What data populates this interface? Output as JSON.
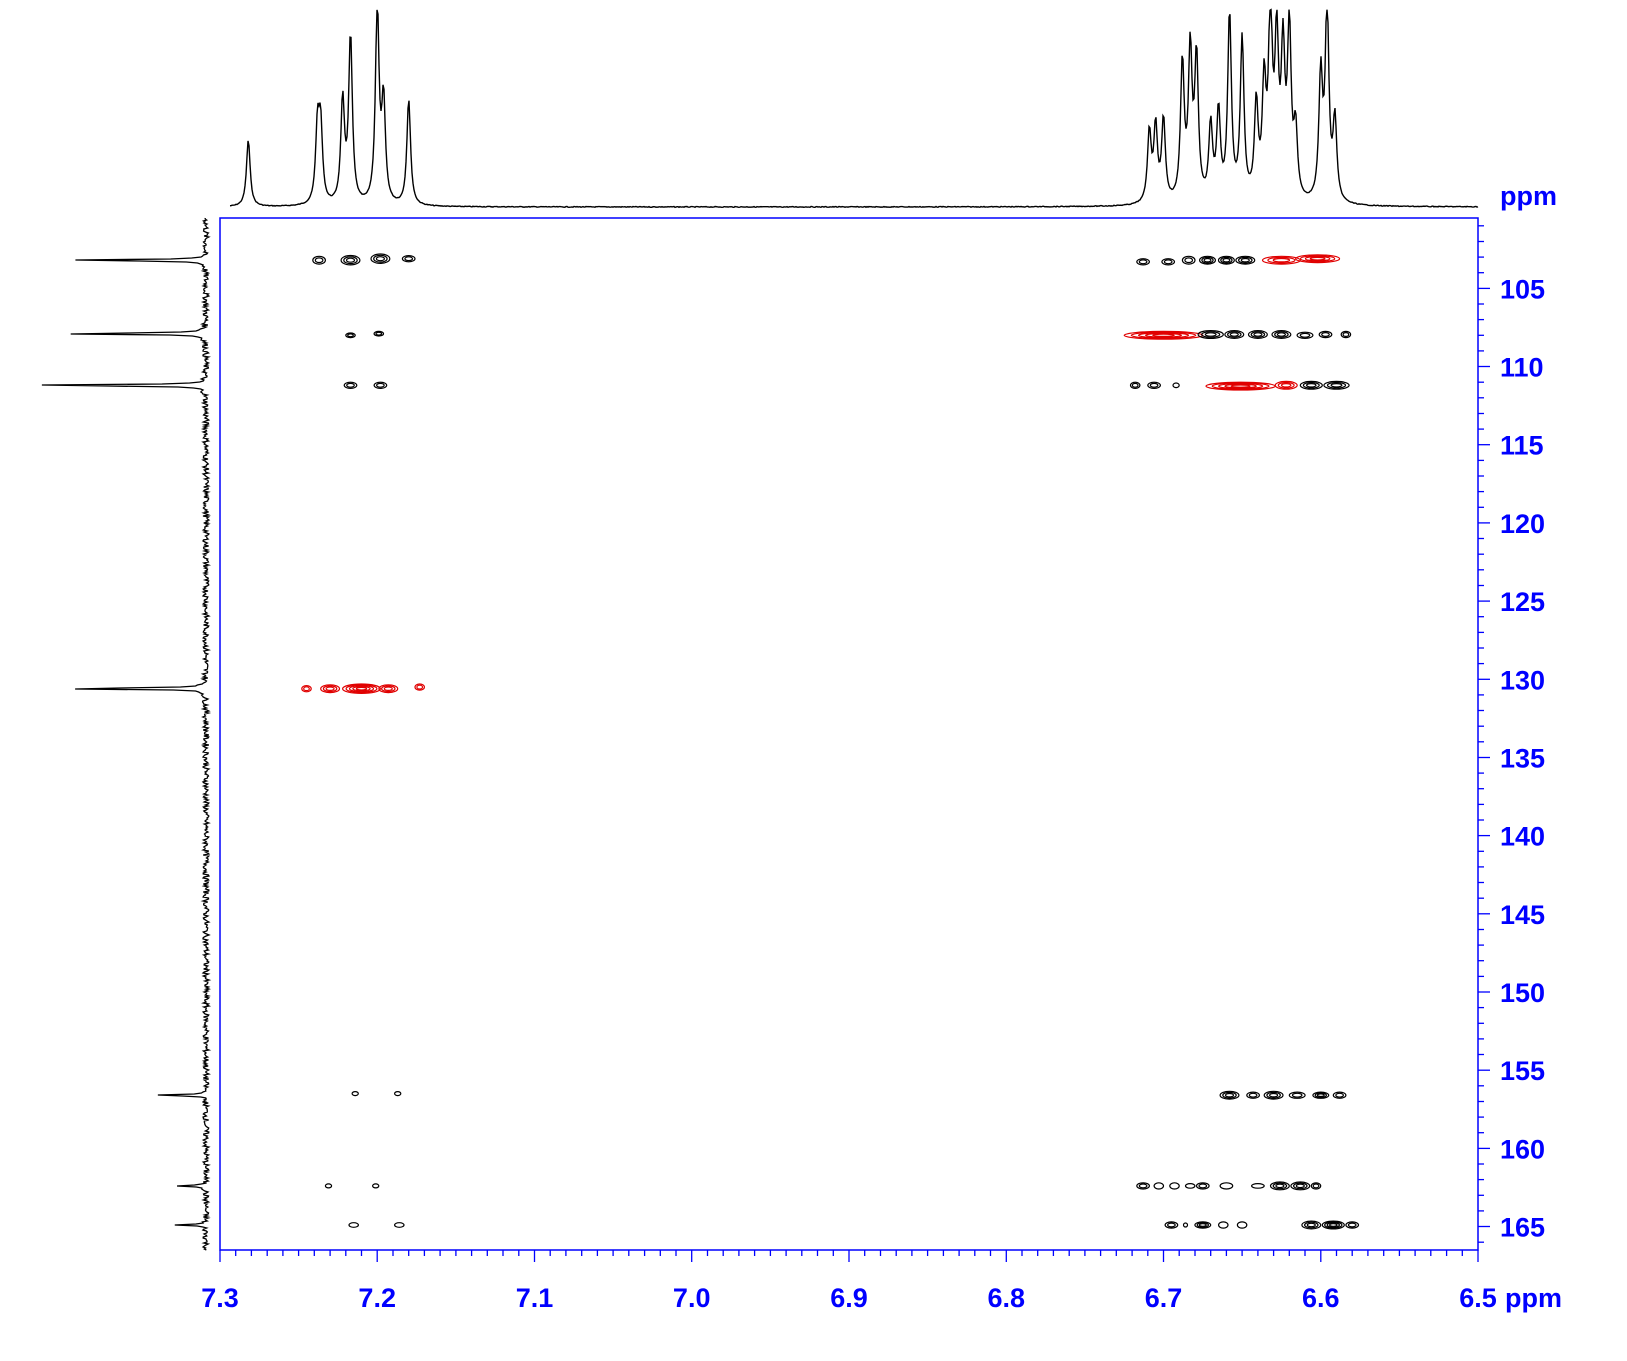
{
  "chart_data": {
    "type": "heatmap",
    "subtype": "2D NMR contour plot (HSQC/HMBC overlay) with 1D projections",
    "x_axis": {
      "unit_label": "ppm",
      "range": [
        7.3,
        6.5
      ],
      "reversed": true,
      "ticks": [
        7.3,
        7.2,
        7.1,
        7.0,
        6.9,
        6.8,
        6.7,
        6.6,
        6.5
      ],
      "tick_labels": [
        "7.3",
        "7.2",
        "7.1",
        "7.0",
        "6.9",
        "6.8",
        "6.7",
        "6.6",
        "6.5"
      ]
    },
    "y_axis": {
      "unit_label": "ppm",
      "range": [
        100.5,
        166.5
      ],
      "reversed": true,
      "position": "right",
      "ticks": [
        105,
        110,
        115,
        120,
        125,
        130,
        135,
        140,
        145,
        150,
        155,
        160,
        165
      ],
      "tick_labels": [
        "105",
        "110",
        "115",
        "120",
        "125",
        "130",
        "135",
        "140",
        "145",
        "150",
        "155",
        "160",
        "165"
      ]
    },
    "colors": {
      "axis": "#0000ff",
      "positive_contour": "#000000",
      "negative_contour": "#e00000",
      "trace": "#000000"
    },
    "top_projection": {
      "peaks": [
        {
          "x": 7.282,
          "h": 0.34
        },
        {
          "x": 7.238,
          "h": 0.38
        },
        {
          "x": 7.236,
          "h": 0.38
        },
        {
          "x": 7.222,
          "h": 0.52
        },
        {
          "x": 7.217,
          "h": 0.85
        },
        {
          "x": 7.2,
          "h": 1.0
        },
        {
          "x": 7.196,
          "h": 0.51
        },
        {
          "x": 7.18,
          "h": 0.54
        },
        {
          "x": 6.709,
          "h": 0.36
        },
        {
          "x": 6.705,
          "h": 0.38
        },
        {
          "x": 6.7,
          "h": 0.42
        },
        {
          "x": 6.688,
          "h": 0.7
        },
        {
          "x": 6.683,
          "h": 0.75
        },
        {
          "x": 6.679,
          "h": 0.72
        },
        {
          "x": 6.67,
          "h": 0.38
        },
        {
          "x": 6.665,
          "h": 0.45
        },
        {
          "x": 6.658,
          "h": 0.95
        },
        {
          "x": 6.65,
          "h": 0.82
        },
        {
          "x": 6.641,
          "h": 0.48
        },
        {
          "x": 6.636,
          "h": 0.56
        },
        {
          "x": 6.632,
          "h": 0.97
        },
        {
          "x": 6.628,
          "h": 0.78
        },
        {
          "x": 6.624,
          "h": 0.72
        },
        {
          "x": 6.62,
          "h": 0.86
        },
        {
          "x": 6.616,
          "h": 0.34
        },
        {
          "x": 6.6,
          "h": 0.63
        },
        {
          "x": 6.596,
          "h": 0.99
        },
        {
          "x": 6.591,
          "h": 0.41
        }
      ]
    },
    "left_projection": {
      "peaks": [
        {
          "y": 103.2,
          "h": 0.73
        },
        {
          "y": 107.9,
          "h": 0.8
        },
        {
          "y": 111.2,
          "h": 1.0
        },
        {
          "y": 130.6,
          "h": 0.81
        },
        {
          "y": 156.6,
          "h": 0.25
        },
        {
          "y": 162.4,
          "h": 0.14
        },
        {
          "y": 164.9,
          "h": 0.16
        }
      ]
    },
    "contours": [
      {
        "x": 7.237,
        "y": 103.2,
        "w": 0.004,
        "h": 0.25,
        "levels": 2,
        "color": "black"
      },
      {
        "x": 7.217,
        "y": 103.2,
        "w": 0.006,
        "h": 0.3,
        "levels": 3,
        "color": "black"
      },
      {
        "x": 7.198,
        "y": 103.1,
        "w": 0.006,
        "h": 0.3,
        "levels": 3,
        "color": "black"
      },
      {
        "x": 7.18,
        "y": 103.1,
        "w": 0.004,
        "h": 0.2,
        "levels": 2,
        "color": "black"
      },
      {
        "x": 6.713,
        "y": 103.3,
        "w": 0.004,
        "h": 0.2,
        "levels": 2,
        "color": "black"
      },
      {
        "x": 6.697,
        "y": 103.3,
        "w": 0.004,
        "h": 0.2,
        "levels": 2,
        "color": "black"
      },
      {
        "x": 6.684,
        "y": 103.2,
        "w": 0.004,
        "h": 0.25,
        "levels": 2,
        "color": "black"
      },
      {
        "x": 6.672,
        "y": 103.2,
        "w": 0.005,
        "h": 0.25,
        "levels": 3,
        "color": "black"
      },
      {
        "x": 6.66,
        "y": 103.2,
        "w": 0.005,
        "h": 0.25,
        "levels": 3,
        "color": "black"
      },
      {
        "x": 6.648,
        "y": 103.2,
        "w": 0.006,
        "h": 0.25,
        "levels": 3,
        "color": "black"
      },
      {
        "x": 6.625,
        "y": 103.2,
        "w": 0.012,
        "h": 0.25,
        "levels": 3,
        "color": "red"
      },
      {
        "x": 6.602,
        "y": 103.1,
        "w": 0.014,
        "h": 0.25,
        "levels": 4,
        "color": "red"
      },
      {
        "x": 7.217,
        "y": 108.0,
        "w": 0.003,
        "h": 0.15,
        "levels": 2,
        "color": "black"
      },
      {
        "x": 7.199,
        "y": 107.9,
        "w": 0.003,
        "h": 0.15,
        "levels": 2,
        "color": "black"
      },
      {
        "x": 6.7,
        "y": 108.0,
        "w": 0.025,
        "h": 0.25,
        "levels": 5,
        "color": "red"
      },
      {
        "x": 6.67,
        "y": 107.95,
        "w": 0.008,
        "h": 0.25,
        "levels": 3,
        "color": "black"
      },
      {
        "x": 6.655,
        "y": 107.95,
        "w": 0.006,
        "h": 0.25,
        "levels": 3,
        "color": "black"
      },
      {
        "x": 6.64,
        "y": 107.95,
        "w": 0.006,
        "h": 0.25,
        "levels": 3,
        "color": "black"
      },
      {
        "x": 6.625,
        "y": 107.95,
        "w": 0.006,
        "h": 0.25,
        "levels": 3,
        "color": "black"
      },
      {
        "x": 6.61,
        "y": 108.0,
        "w": 0.005,
        "h": 0.2,
        "levels": 2,
        "color": "black"
      },
      {
        "x": 6.597,
        "y": 107.95,
        "w": 0.004,
        "h": 0.2,
        "levels": 2,
        "color": "black"
      },
      {
        "x": 6.584,
        "y": 107.95,
        "w": 0.003,
        "h": 0.2,
        "levels": 2,
        "color": "black"
      },
      {
        "x": 7.217,
        "y": 111.2,
        "w": 0.004,
        "h": 0.2,
        "levels": 2,
        "color": "black"
      },
      {
        "x": 7.198,
        "y": 111.2,
        "w": 0.004,
        "h": 0.2,
        "levels": 2,
        "color": "black"
      },
      {
        "x": 6.718,
        "y": 111.2,
        "w": 0.003,
        "h": 0.2,
        "levels": 2,
        "color": "black"
      },
      {
        "x": 6.706,
        "y": 111.2,
        "w": 0.004,
        "h": 0.2,
        "levels": 2,
        "color": "black"
      },
      {
        "x": 6.692,
        "y": 111.2,
        "w": 0.002,
        "h": 0.15,
        "levels": 1,
        "color": "black"
      },
      {
        "x": 6.651,
        "y": 111.25,
        "w": 0.022,
        "h": 0.25,
        "levels": 5,
        "color": "red"
      },
      {
        "x": 6.622,
        "y": 111.2,
        "w": 0.007,
        "h": 0.25,
        "levels": 3,
        "color": "red"
      },
      {
        "x": 6.606,
        "y": 111.2,
        "w": 0.007,
        "h": 0.25,
        "levels": 3,
        "color": "black"
      },
      {
        "x": 6.59,
        "y": 111.2,
        "w": 0.008,
        "h": 0.25,
        "levels": 3,
        "color": "black"
      },
      {
        "x": 7.245,
        "y": 130.6,
        "w": 0.003,
        "h": 0.2,
        "levels": 2,
        "color": "red"
      },
      {
        "x": 7.23,
        "y": 130.6,
        "w": 0.006,
        "h": 0.25,
        "levels": 3,
        "color": "red"
      },
      {
        "x": 7.21,
        "y": 130.6,
        "w": 0.012,
        "h": 0.3,
        "levels": 5,
        "color": "red"
      },
      {
        "x": 7.193,
        "y": 130.6,
        "w": 0.006,
        "h": 0.25,
        "levels": 3,
        "color": "red"
      },
      {
        "x": 7.173,
        "y": 130.5,
        "w": 0.003,
        "h": 0.2,
        "levels": 2,
        "color": "red"
      },
      {
        "x": 7.214,
        "y": 156.5,
        "w": 0.002,
        "h": 0.12,
        "levels": 1,
        "color": "black"
      },
      {
        "x": 7.187,
        "y": 156.5,
        "w": 0.002,
        "h": 0.08,
        "levels": 1,
        "color": "black"
      },
      {
        "x": 6.658,
        "y": 156.6,
        "w": 0.006,
        "h": 0.25,
        "levels": 3,
        "color": "black"
      },
      {
        "x": 6.643,
        "y": 156.6,
        "w": 0.004,
        "h": 0.2,
        "levels": 2,
        "color": "black"
      },
      {
        "x": 6.63,
        "y": 156.6,
        "w": 0.006,
        "h": 0.25,
        "levels": 3,
        "color": "black"
      },
      {
        "x": 6.615,
        "y": 156.6,
        "w": 0.005,
        "h": 0.2,
        "levels": 2,
        "color": "black"
      },
      {
        "x": 6.6,
        "y": 156.6,
        "w": 0.005,
        "h": 0.2,
        "levels": 3,
        "color": "black"
      },
      {
        "x": 6.588,
        "y": 156.6,
        "w": 0.004,
        "h": 0.2,
        "levels": 2,
        "color": "black"
      },
      {
        "x": 7.231,
        "y": 162.4,
        "w": 0.002,
        "h": 0.1,
        "levels": 1,
        "color": "black"
      },
      {
        "x": 7.201,
        "y": 162.4,
        "w": 0.002,
        "h": 0.1,
        "levels": 1,
        "color": "black"
      },
      {
        "x": 6.713,
        "y": 162.4,
        "w": 0.004,
        "h": 0.2,
        "levels": 2,
        "color": "black"
      },
      {
        "x": 6.703,
        "y": 162.4,
        "w": 0.003,
        "h": 0.2,
        "levels": 1,
        "color": "black"
      },
      {
        "x": 6.693,
        "y": 162.4,
        "w": 0.003,
        "h": 0.2,
        "levels": 1,
        "color": "black"
      },
      {
        "x": 6.683,
        "y": 162.4,
        "w": 0.003,
        "h": 0.15,
        "levels": 1,
        "color": "black"
      },
      {
        "x": 6.675,
        "y": 162.4,
        "w": 0.004,
        "h": 0.2,
        "levels": 2,
        "color": "black"
      },
      {
        "x": 6.66,
        "y": 162.4,
        "w": 0.004,
        "h": 0.2,
        "levels": 1,
        "color": "black"
      },
      {
        "x": 6.64,
        "y": 162.4,
        "w": 0.004,
        "h": 0.15,
        "levels": 1,
        "color": "black"
      },
      {
        "x": 6.626,
        "y": 162.4,
        "w": 0.006,
        "h": 0.25,
        "levels": 3,
        "color": "black"
      },
      {
        "x": 6.613,
        "y": 162.4,
        "w": 0.006,
        "h": 0.25,
        "levels": 3,
        "color": "black"
      },
      {
        "x": 6.603,
        "y": 162.4,
        "w": 0.003,
        "h": 0.2,
        "levels": 2,
        "color": "black"
      },
      {
        "x": 7.215,
        "y": 164.9,
        "w": 0.003,
        "h": 0.15,
        "levels": 1,
        "color": "black"
      },
      {
        "x": 7.186,
        "y": 164.9,
        "w": 0.003,
        "h": 0.15,
        "levels": 1,
        "color": "black"
      },
      {
        "x": 6.695,
        "y": 164.9,
        "w": 0.004,
        "h": 0.2,
        "levels": 2,
        "color": "black"
      },
      {
        "x": 6.686,
        "y": 164.9,
        "w": 0.001,
        "h": 0.12,
        "levels": 1,
        "color": "black"
      },
      {
        "x": 6.675,
        "y": 164.9,
        "w": 0.005,
        "h": 0.2,
        "levels": 3,
        "color": "black"
      },
      {
        "x": 6.662,
        "y": 164.9,
        "w": 0.003,
        "h": 0.2,
        "levels": 1,
        "color": "black"
      },
      {
        "x": 6.65,
        "y": 164.9,
        "w": 0.003,
        "h": 0.2,
        "levels": 1,
        "color": "black"
      },
      {
        "x": 6.606,
        "y": 164.9,
        "w": 0.006,
        "h": 0.25,
        "levels": 3,
        "color": "black"
      },
      {
        "x": 6.592,
        "y": 164.9,
        "w": 0.007,
        "h": 0.25,
        "levels": 4,
        "color": "black"
      },
      {
        "x": 6.58,
        "y": 164.9,
        "w": 0.004,
        "h": 0.2,
        "levels": 2,
        "color": "black"
      }
    ]
  }
}
